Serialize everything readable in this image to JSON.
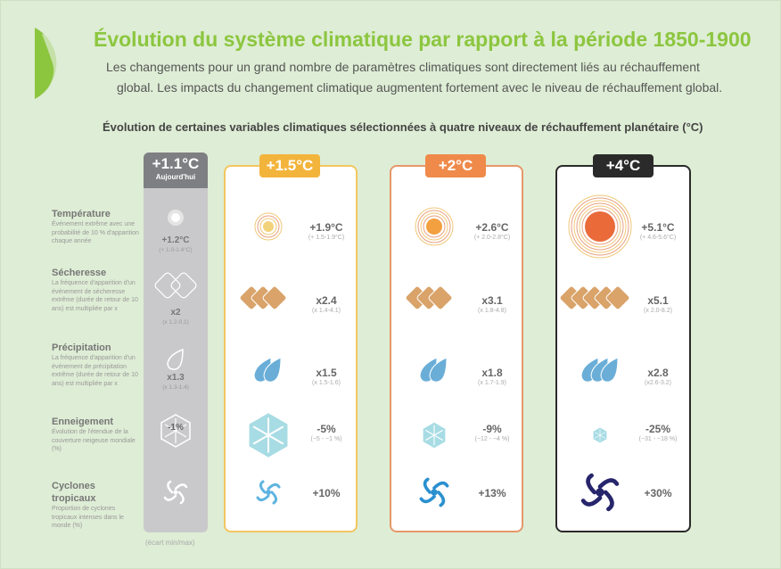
{
  "title": "Évolution du système climatique par rapport à la période 1850-1900",
  "subtitle": [
    "Les changements pour un grand nombre de paramètres climatiques sont directement liés au réchauffement",
    "global. Les impacts du changement climatique augmentent fortement avec le niveau de réchauffement global."
  ],
  "heading": "Évolution de certaines variables climatiques sélectionnées à quatre niveaux de réchauffement planétaire (°C)",
  "rows": [
    {
      "title": "Température",
      "desc": "Événement extrême avec une probabilité de 10 % d'apparition chaque année"
    },
    {
      "title": "Sécheresse",
      "desc": "La fréquence d'apparition d'un événement de sécheresse extrême (durée de retour de 10 ans) est multipliée par x"
    },
    {
      "title": "Précipitation",
      "desc": "La fréquence d'apparition d'un événement de précipitation extrême (durée de retour de 10 ans) est multipliée par x"
    },
    {
      "title": "Enneigement",
      "desc": "Évolution de l'étendue de la couverture neigeuse mondiale (%)"
    },
    {
      "title": "Cyclones tropicaux",
      "desc": "Proportion de cyclones tropicaux intenses dans le monde (%)"
    }
  ],
  "today": {
    "label": "+1.1°C",
    "sublabel": "Aujourd'hui",
    "values": [
      {
        "v": "+1.2°C",
        "r": "(+ 1.0-1.4°C)"
      },
      {
        "v": "x2",
        "r": "(x 1.2-0.1)"
      },
      {
        "v": "x1.3",
        "r": "(x 1.3-1.4)"
      },
      {
        "v": "-1%",
        "r": ""
      },
      {
        "v": "",
        "r": ""
      }
    ]
  },
  "footnote": "(écart min/max)",
  "scenarios": [
    {
      "label": "+1.5°C",
      "color": "#f3b43c",
      "values": [
        {
          "v": "+1.9°C",
          "r": "(+ 1.5-1.9°C)"
        },
        {
          "v": "x2.4",
          "r": "(x 1.4-4.1)"
        },
        {
          "v": "x1.5",
          "r": "(x 1.5-1.6)"
        },
        {
          "v": "-5%",
          "r": "(−5 - −1 %)"
        },
        {
          "v": "+10%",
          "r": ""
        }
      ]
    },
    {
      "label": "+2°C",
      "color": "#ef8a4a",
      "values": [
        {
          "v": "+2.6°C",
          "r": "(+ 2.0-2.8°C)"
        },
        {
          "v": "x3.1",
          "r": "(x 1.8-4.8)"
        },
        {
          "v": "x1.8",
          "r": "(x 1.7-1.9)"
        },
        {
          "v": "-9%",
          "r": "(−12 - −4 %)"
        },
        {
          "v": "+13%",
          "r": ""
        }
      ]
    },
    {
      "label": "+4°C",
      "color": "#2b2a2a",
      "values": [
        {
          "v": "+5.1°C",
          "r": "(+ 4.6-5.6°C)"
        },
        {
          "v": "x5.1",
          "r": "(x 2.0-8.2)"
        },
        {
          "v": "x2.8",
          "r": "(x2.6-3.2)"
        },
        {
          "v": "-25%",
          "r": "(−31 - −18 %)"
        },
        {
          "v": "+30%",
          "r": ""
        }
      ]
    }
  ]
}
